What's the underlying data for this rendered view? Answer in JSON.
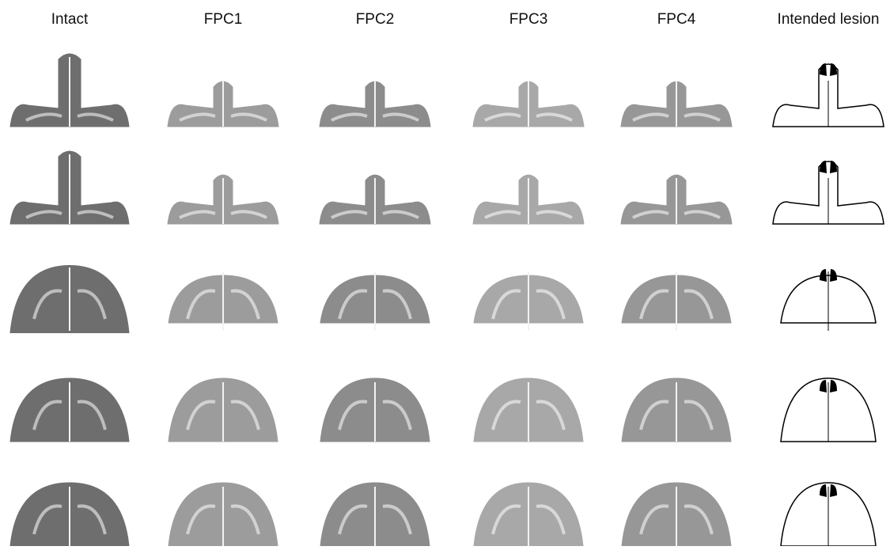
{
  "header": {
    "columns": [
      "Intact",
      "FPC1",
      "FPC2",
      "FPC3",
      "FPC4",
      "Intended lesion"
    ]
  }
}
